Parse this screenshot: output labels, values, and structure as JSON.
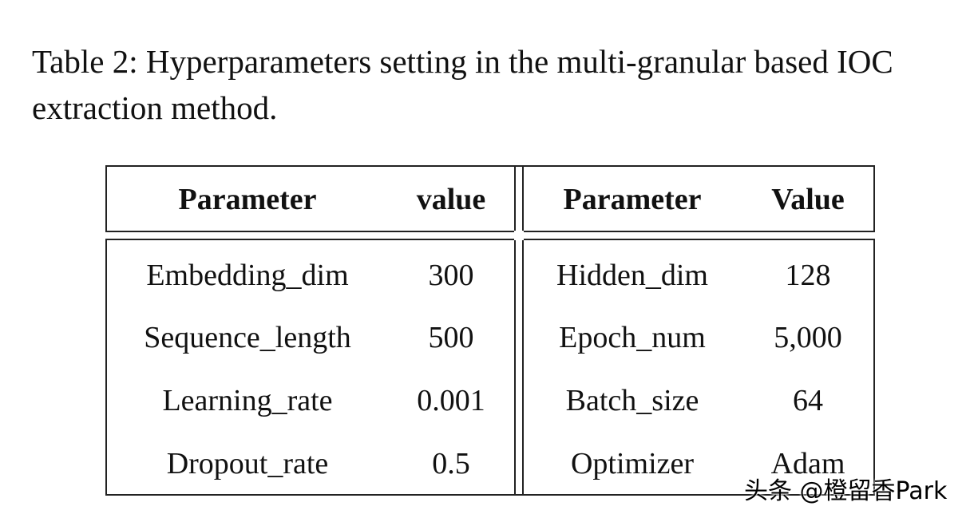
{
  "caption": "Table 2: Hyperparameters setting in the multi-granular based IOC extraction method.",
  "table": {
    "header": [
      "Parameter",
      "value",
      "Parameter",
      "Value"
    ],
    "rows": [
      [
        "Embedding_dim",
        "300",
        "Hidden_dim",
        "128"
      ],
      [
        "Sequence_length",
        "500",
        "Epoch_num",
        "5,000"
      ],
      [
        "Learning_rate",
        "0.001",
        "Batch_size",
        "64"
      ],
      [
        "Dropout_rate",
        "0.5",
        "Optimizer",
        "Adam"
      ]
    ]
  },
  "watermark": "头条 @橙留香Park"
}
